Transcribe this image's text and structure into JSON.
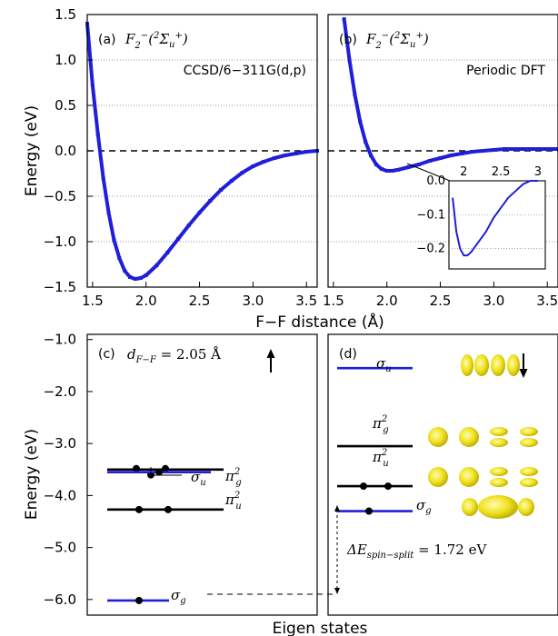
{
  "chart_data": [
    {
      "panel": "a",
      "type": "line",
      "label": "(a)",
      "title": "F2−(2Σu+)",
      "annotation": "CCSD/6−311G(d,p)",
      "xlim": [
        1.45,
        3.6
      ],
      "ylim": [
        -1.5,
        1.5
      ],
      "x_ticks": [
        "1.5",
        "2.0",
        "2.5",
        "3.0",
        "3.5"
      ],
      "y_ticks": [
        "1.5",
        "1.0",
        "0.5",
        "0.0",
        "−0.5",
        "−1.0",
        "−1.5"
      ],
      "x": [
        1.45,
        1.5,
        1.55,
        1.6,
        1.65,
        1.7,
        1.75,
        1.8,
        1.85,
        1.9,
        1.95,
        2.0,
        2.1,
        2.2,
        2.3,
        2.4,
        2.5,
        2.6,
        2.7,
        2.8,
        2.9,
        3.0,
        3.1,
        3.2,
        3.3,
        3.4,
        3.5,
        3.6
      ],
      "y": [
        1.4,
        0.72,
        0.18,
        -0.3,
        -0.68,
        -0.98,
        -1.18,
        -1.32,
        -1.39,
        -1.41,
        -1.4,
        -1.37,
        -1.26,
        -1.12,
        -0.97,
        -0.82,
        -0.68,
        -0.55,
        -0.43,
        -0.33,
        -0.24,
        -0.17,
        -0.12,
        -0.08,
        -0.05,
        -0.03,
        -0.01,
        0.0
      ],
      "color": "#1f1fd9",
      "grid": "horizontal dotted",
      "zero_line": "dashed"
    },
    {
      "panel": "b",
      "type": "line",
      "label": "(b)",
      "title": "F2−(2Σu+)",
      "annotation": "Periodic DFT",
      "xlim": [
        1.45,
        3.6
      ],
      "ylim": [
        -1.5,
        1.5
      ],
      "x_ticks": [
        "1.5",
        "2.0",
        "2.5",
        "3.0",
        "3.5"
      ],
      "x": [
        1.6,
        1.65,
        1.7,
        1.75,
        1.8,
        1.85,
        1.9,
        1.95,
        2.0,
        2.05,
        2.1,
        2.2,
        2.3,
        2.4,
        2.5,
        2.6,
        2.7,
        2.8,
        2.9,
        3.0,
        3.1,
        3.2,
        3.3,
        3.4,
        3.5,
        3.6
      ],
      "y": [
        1.45,
        1.0,
        0.62,
        0.32,
        0.1,
        -0.05,
        -0.15,
        -0.2,
        -0.22,
        -0.22,
        -0.21,
        -0.18,
        -0.15,
        -0.11,
        -0.08,
        -0.05,
        -0.03,
        -0.01,
        0.0,
        0.01,
        0.02,
        0.02,
        0.02,
        0.02,
        0.02,
        0.02
      ],
      "color": "#1f1fd9",
      "inset": {
        "xlim": [
          1.8,
          3.1
        ],
        "ylim": [
          -0.26,
          0.0
        ],
        "x_ticks": [
          "2",
          "2.5",
          "3"
        ],
        "y_ticks": [
          "0.0",
          "−0.1",
          "−0.2"
        ],
        "x": [
          1.85,
          1.9,
          1.95,
          2.0,
          2.05,
          2.1,
          2.2,
          2.3,
          2.4,
          2.5,
          2.6,
          2.7,
          2.8,
          2.9,
          3.0
        ],
        "y": [
          -0.05,
          -0.15,
          -0.2,
          -0.22,
          -0.22,
          -0.21,
          -0.18,
          -0.15,
          -0.11,
          -0.08,
          -0.05,
          -0.03,
          -0.01,
          0.0,
          0.0
        ]
      }
    },
    {
      "panel": "c",
      "type": "levels",
      "label": "(c)",
      "distance_label": "dF−F = 2.05 Å",
      "spin": "up",
      "ylim": [
        -6.3,
        -0.9
      ],
      "y_ticks": [
        "−1.0",
        "−2.0",
        "−3.0",
        "−4.0",
        "−5.0",
        "−6.0"
      ],
      "levels": [
        {
          "name": "πg2",
          "energy": -3.5,
          "color": "#000000",
          "electrons": 3
        },
        {
          "name": "σu",
          "energy": -3.55,
          "color": "#1f1fd9",
          "electrons": 1
        },
        {
          "name": "πu2",
          "energy": -4.27,
          "color": "#000000",
          "electrons": 2
        },
        {
          "name": "σg",
          "energy": -6.02,
          "color": "#1f1fd9",
          "electrons": 1
        }
      ]
    },
    {
      "panel": "d",
      "type": "levels",
      "label": "(d)",
      "spin": "down",
      "spin_split_label": "ΔEspin−split = 1.72 eV",
      "levels": [
        {
          "name": "σu",
          "energy": -1.55,
          "color": "#1f1fd9",
          "electrons": 0
        },
        {
          "name": "πg2",
          "energy": -3.05,
          "color": "#000000",
          "electrons": 0
        },
        {
          "name": "πu2",
          "energy": -3.82,
          "color": "#000000",
          "electrons": 2
        },
        {
          "name": "σg",
          "energy": -4.3,
          "color": "#1f1fd9",
          "electrons": 1
        }
      ]
    }
  ],
  "labels": {
    "energy_axis": "Energy (eV)",
    "distance_axis": "F−F distance (Å)",
    "eigen_axis": "Eigen states"
  }
}
